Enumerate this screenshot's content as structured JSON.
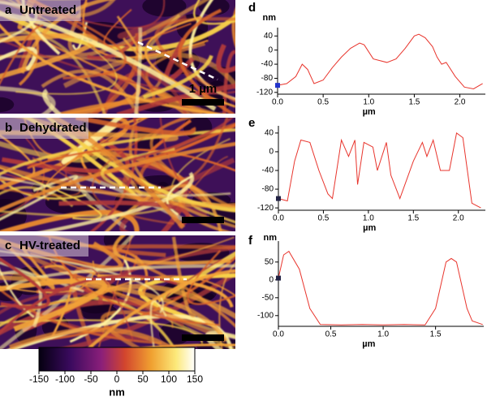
{
  "images": [
    {
      "letter": "a",
      "label": "Untreated",
      "scale_bar": "1 µm"
    },
    {
      "letter": "b",
      "label": "Dehydrated"
    },
    {
      "letter": "c",
      "label": "HV-treated"
    }
  ],
  "colorbar": {
    "lim": [
      -150,
      150
    ],
    "ticks": [
      -150,
      -100,
      -50,
      0,
      50,
      100,
      150
    ],
    "label": "nm"
  },
  "chart_data": [
    {
      "type": "line",
      "panel": "d",
      "ylabel": "nm",
      "xlabel": "µm",
      "marker_color": "#2233cc",
      "x": [
        0,
        0.1,
        0.2,
        0.27,
        0.33,
        0.4,
        0.5,
        0.6,
        0.7,
        0.8,
        0.9,
        0.95,
        1.05,
        1.2,
        1.3,
        1.4,
        1.5,
        1.55,
        1.62,
        1.7,
        1.75,
        1.8,
        1.85,
        1.95,
        2.05,
        2.15,
        2.25
      ],
      "series": [
        {
          "color": "#e8342c",
          "values": [
            -100,
            -95,
            -75,
            -40,
            -55,
            -95,
            -85,
            -50,
            -20,
            5,
            20,
            15,
            -25,
            -35,
            -25,
            5,
            40,
            45,
            35,
            10,
            -20,
            -40,
            -35,
            -75,
            -105,
            -110,
            -95
          ]
        }
      ],
      "xlim": [
        0,
        2.28
      ],
      "ylim": [
        -125,
        50
      ],
      "xticks": [
        {
          "value": 0,
          "label": "0.0"
        },
        0.5,
        {
          "value": 1,
          "label": "1.0"
        },
        1.5,
        {
          "value": 2,
          "label": "2.0"
        }
      ],
      "yticks": [
        -120,
        -80,
        -40,
        0,
        40
      ]
    },
    {
      "type": "line",
      "panel": "e",
      "xlabel": "µm",
      "marker_color": "#222244",
      "x": [
        0,
        0.1,
        0.18,
        0.25,
        0.35,
        0.45,
        0.55,
        0.6,
        0.7,
        0.78,
        0.85,
        0.88,
        0.95,
        1.05,
        1.1,
        1.2,
        1.25,
        1.35,
        1.5,
        1.6,
        1.65,
        1.72,
        1.8,
        1.9,
        1.98,
        2.05,
        2.15,
        2.25
      ],
      "series": [
        {
          "color": "#e8342c",
          "values": [
            -100,
            -105,
            -20,
            25,
            20,
            -40,
            -90,
            -100,
            25,
            -10,
            25,
            -70,
            20,
            10,
            -40,
            20,
            -50,
            -100,
            -20,
            20,
            -10,
            25,
            -40,
            -40,
            40,
            30,
            -110,
            -120
          ]
        }
      ],
      "xlim": [
        0,
        2.3
      ],
      "ylim": [
        -125,
        45
      ],
      "xticks": [
        {
          "value": 0,
          "label": "0.0"
        },
        0.5,
        {
          "value": 1,
          "label": "1.0"
        },
        1.5,
        {
          "value": 2,
          "label": "2.0"
        }
      ],
      "yticks": [
        -120,
        -80,
        -40,
        0,
        40
      ]
    },
    {
      "type": "line",
      "panel": "f",
      "ylabel": "nm",
      "xlabel": "µm",
      "marker_color": "#222244",
      "x": [
        0,
        0.05,
        0.1,
        0.2,
        0.3,
        0.4,
        0.6,
        0.8,
        1.0,
        1.2,
        1.4,
        1.5,
        1.6,
        1.65,
        1.7,
        1.8,
        1.85,
        1.95
      ],
      "series": [
        {
          "color": "#e8342c",
          "values": [
            5,
            70,
            80,
            30,
            -80,
            -125,
            -126,
            -125,
            -126,
            -125,
            -126,
            -80,
            50,
            60,
            50,
            -80,
            -115,
            -125
          ]
        }
      ],
      "xlim": [
        0,
        1.96
      ],
      "ylim": [
        -130,
        95
      ],
      "xticks": [
        {
          "value": 0,
          "label": "0.0"
        },
        0.5,
        {
          "value": 1,
          "label": "1.0"
        },
        1.5
      ],
      "yticks": [
        -100,
        -50,
        0,
        50
      ]
    }
  ]
}
